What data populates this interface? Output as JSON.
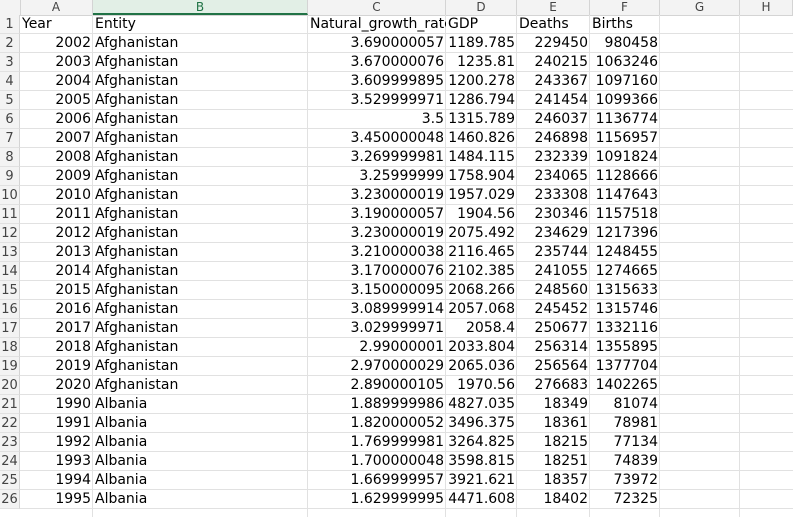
{
  "columns": [
    "A",
    "B",
    "C",
    "D",
    "E",
    "F",
    "G",
    "H"
  ],
  "rows": [
    {
      "n": "1",
      "cells": [
        "Year",
        "Entity",
        "Natural_growth_rate",
        "GDP",
        "Deaths",
        "Births"
      ]
    },
    {
      "n": "2",
      "cells": [
        "2002",
        "Afghanistan",
        "3.690000057",
        "1189.785",
        "229450",
        "980458"
      ]
    },
    {
      "n": "3",
      "cells": [
        "2003",
        "Afghanistan",
        "3.670000076",
        "1235.81",
        "240215",
        "1063246"
      ]
    },
    {
      "n": "4",
      "cells": [
        "2004",
        "Afghanistan",
        "3.609999895",
        "1200.278",
        "243367",
        "1097160"
      ]
    },
    {
      "n": "5",
      "cells": [
        "2005",
        "Afghanistan",
        "3.529999971",
        "1286.794",
        "241454",
        "1099366"
      ]
    },
    {
      "n": "6",
      "cells": [
        "2006",
        "Afghanistan",
        "3.5",
        "1315.789",
        "246037",
        "1136774"
      ]
    },
    {
      "n": "7",
      "cells": [
        "2007",
        "Afghanistan",
        "3.450000048",
        "1460.826",
        "246898",
        "1156957"
      ]
    },
    {
      "n": "8",
      "cells": [
        "2008",
        "Afghanistan",
        "3.269999981",
        "1484.115",
        "232339",
        "1091824"
      ]
    },
    {
      "n": "9",
      "cells": [
        "2009",
        "Afghanistan",
        "3.25999999",
        "1758.904",
        "234065",
        "1128666"
      ]
    },
    {
      "n": "10",
      "cells": [
        "2010",
        "Afghanistan",
        "3.230000019",
        "1957.029",
        "233308",
        "1147643"
      ]
    },
    {
      "n": "11",
      "cells": [
        "2011",
        "Afghanistan",
        "3.190000057",
        "1904.56",
        "230346",
        "1157518"
      ]
    },
    {
      "n": "12",
      "cells": [
        "2012",
        "Afghanistan",
        "3.230000019",
        "2075.492",
        "234629",
        "1217396"
      ]
    },
    {
      "n": "13",
      "cells": [
        "2013",
        "Afghanistan",
        "3.210000038",
        "2116.465",
        "235744",
        "1248455"
      ]
    },
    {
      "n": "14",
      "cells": [
        "2014",
        "Afghanistan",
        "3.170000076",
        "2102.385",
        "241055",
        "1274665"
      ]
    },
    {
      "n": "15",
      "cells": [
        "2015",
        "Afghanistan",
        "3.150000095",
        "2068.266",
        "248560",
        "1315633"
      ]
    },
    {
      "n": "16",
      "cells": [
        "2016",
        "Afghanistan",
        "3.089999914",
        "2057.068",
        "245452",
        "1315746"
      ]
    },
    {
      "n": "17",
      "cells": [
        "2017",
        "Afghanistan",
        "3.029999971",
        "2058.4",
        "250677",
        "1332116"
      ]
    },
    {
      "n": "18",
      "cells": [
        "2018",
        "Afghanistan",
        "2.99000001",
        "2033.804",
        "256314",
        "1355895"
      ]
    },
    {
      "n": "19",
      "cells": [
        "2019",
        "Afghanistan",
        "2.970000029",
        "2065.036",
        "256564",
        "1377704"
      ]
    },
    {
      "n": "20",
      "cells": [
        "2020",
        "Afghanistan",
        "2.890000105",
        "1970.56",
        "276683",
        "1402265"
      ]
    },
    {
      "n": "21",
      "cells": [
        "1990",
        "Albania",
        "1.889999986",
        "4827.035",
        "18349",
        "81074"
      ]
    },
    {
      "n": "22",
      "cells": [
        "1991",
        "Albania",
        "1.820000052",
        "3496.375",
        "18361",
        "78981"
      ]
    },
    {
      "n": "23",
      "cells": [
        "1992",
        "Albania",
        "1.769999981",
        "3264.825",
        "18215",
        "77134"
      ]
    },
    {
      "n": "24",
      "cells": [
        "1993",
        "Albania",
        "1.700000048",
        "3598.815",
        "18251",
        "74839"
      ]
    },
    {
      "n": "25",
      "cells": [
        "1994",
        "Albania",
        "1.669999957",
        "3921.621",
        "18357",
        "73972"
      ]
    },
    {
      "n": "26",
      "cells": [
        "1995",
        "Albania",
        "1.629999995",
        "4471.608",
        "18402",
        "72325"
      ]
    }
  ],
  "colors": {
    "header_bg": "#f3f3f3",
    "gridline": "#e1e1e1",
    "selected_col": "#217346"
  }
}
